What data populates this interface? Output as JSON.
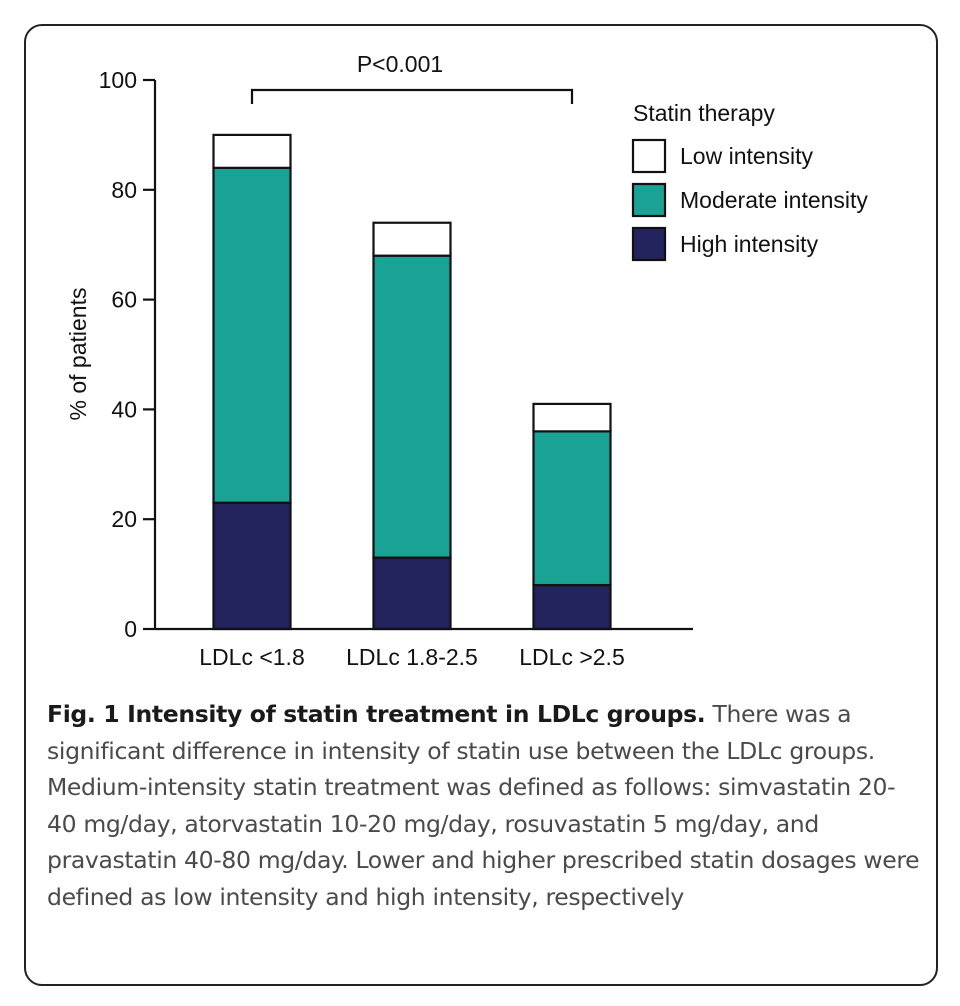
{
  "chart_data": {
    "type": "bar",
    "stacked": true,
    "categories": [
      "LDLc <1.8",
      "LDLc 1.8-2.5",
      "LDLc >2.5"
    ],
    "series": [
      {
        "name": "High intensity",
        "values": [
          23,
          13,
          8
        ],
        "color": "#23235e"
      },
      {
        "name": "Moderate intensity",
        "values": [
          61,
          55,
          28
        ],
        "color": "#1aa395"
      },
      {
        "name": "Low intensity",
        "values": [
          6,
          6,
          5
        ],
        "color": "#ffffff"
      }
    ],
    "ylabel": "% of patients",
    "xlabel": "",
    "ylim": [
      0,
      100
    ],
    "yticks": [
      0,
      20,
      40,
      60,
      80,
      100
    ],
    "legend_title": "Statin therapy",
    "legend_order": [
      "Low intensity",
      "Moderate intensity",
      "High intensity"
    ],
    "legend_position": "top-right",
    "annotation": "P<0.001",
    "grid": false
  },
  "caption": {
    "title": "Fig. 1 Intensity of statin treatment in LDLc groups.",
    "text": " There was a significant difference in intensity of statin use between the LDLc groups. Medium-intensity statin treatment was defined as follows: simvastatin 20-40 mg/day, atorvastatin 10-20 mg/day, rosuvastatin 5 mg/day, and pravastatin 40-80 mg/day. Lower and higher prescribed statin dosages were defined as low intensity and high intensity, respectively"
  }
}
